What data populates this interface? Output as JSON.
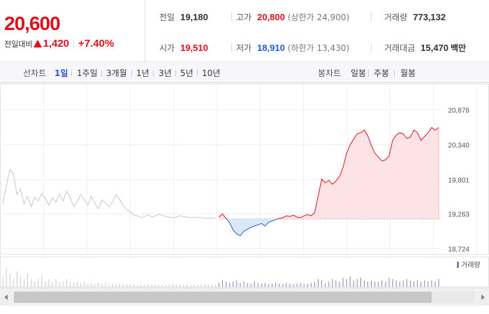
{
  "quote": {
    "price": "20,600",
    "change_label": "전일대비",
    "change_value": "1,420",
    "change_pct": "+7.40%",
    "up_color": "#e0111b",
    "down_color": "#1a5fd6"
  },
  "stats": {
    "prev_close_label": "전일",
    "prev_close": "19,180",
    "high_label": "고가",
    "high": "20,800",
    "upper_limit": "(상한가 24,900)",
    "volume_label": "거래량",
    "volume": "773,132",
    "open_label": "시가",
    "open": "19,510",
    "low_label": "저가",
    "low": "18,910",
    "lower_limit": "(하한가 13,430)",
    "value_label": "거래대금",
    "value": "15,470",
    "value_unit": "백만"
  },
  "tabs": {
    "line_label": "선차트",
    "line_periods": [
      "1일",
      "1주일",
      "3개월",
      "1년",
      "3년",
      "5년",
      "10년"
    ],
    "selected_line_period": "1일",
    "candle_label": "봉차트",
    "candle_periods": [
      "일봉",
      "주봉",
      "월봉"
    ]
  },
  "chart_data": {
    "type": "line",
    "title": "",
    "xlabel": "",
    "ylabel": "",
    "y_ticks": [
      "20,878",
      "20,340",
      "19,801",
      "19,263",
      "18,724"
    ],
    "ylim": [
      18724,
      20878
    ],
    "baseline": 19180,
    "grid": true,
    "series": [
      {
        "role": "previous-days",
        "color": "#c8c8c8",
        "points": [
          [
            0,
            19420
          ],
          [
            1,
            19700
          ],
          [
            2,
            19950
          ],
          [
            3,
            19880
          ],
          [
            4,
            19560
          ],
          [
            5,
            19650
          ],
          [
            6,
            19420
          ],
          [
            7,
            19530
          ],
          [
            8,
            19370
          ],
          [
            9,
            19520
          ],
          [
            10,
            19460
          ],
          [
            11,
            19580
          ],
          [
            12,
            19500
          ],
          [
            13,
            19390
          ],
          [
            14,
            19510
          ],
          [
            15,
            19440
          ],
          [
            16,
            19570
          ],
          [
            17,
            19460
          ],
          [
            18,
            19610
          ],
          [
            19,
            19520
          ],
          [
            20,
            19370
          ],
          [
            21,
            19450
          ],
          [
            22,
            19560
          ],
          [
            23,
            19480
          ],
          [
            24,
            19400
          ],
          [
            25,
            19530
          ],
          [
            26,
            19420
          ],
          [
            27,
            19340
          ],
          [
            28,
            19480
          ],
          [
            29,
            19420
          ],
          [
            30,
            19370
          ],
          [
            31,
            19450
          ],
          [
            32,
            19560
          ],
          [
            33,
            19480
          ],
          [
            34,
            19390
          ],
          [
            35,
            19320
          ],
          [
            36,
            19290
          ],
          [
            37,
            19240
          ],
          [
            38,
            19230
          ],
          [
            39,
            19200
          ],
          [
            40,
            19220
          ],
          [
            41,
            19240
          ],
          [
            42,
            19210
          ],
          [
            43,
            19230
          ],
          [
            44,
            19250
          ],
          [
            45,
            19240
          ],
          [
            46,
            19220
          ],
          [
            47,
            19210
          ],
          [
            48,
            19200
          ],
          [
            49,
            19210
          ],
          [
            50,
            19230
          ],
          [
            51,
            19220
          ],
          [
            52,
            19210
          ],
          [
            53,
            19200
          ],
          [
            54,
            19210
          ],
          [
            55,
            19205
          ],
          [
            56,
            19200
          ],
          [
            57,
            19195
          ],
          [
            58,
            19190
          ],
          [
            59,
            19195
          ],
          [
            60,
            19190
          ]
        ]
      },
      {
        "role": "today",
        "up_color": "#e0111b",
        "down_color": "#1a5fd6",
        "points": [
          [
            61,
            19210
          ],
          [
            62,
            19260
          ],
          [
            63,
            19190
          ],
          [
            64,
            19120
          ],
          [
            65,
            19010
          ],
          [
            66,
            18950
          ],
          [
            67,
            18920
          ],
          [
            68,
            18990
          ],
          [
            69,
            19020
          ],
          [
            70,
            19050
          ],
          [
            71,
            19070
          ],
          [
            72,
            19090
          ],
          [
            73,
            19110
          ],
          [
            74,
            19070
          ],
          [
            75,
            19130
          ],
          [
            76,
            19150
          ],
          [
            77,
            19170
          ],
          [
            78,
            19190
          ],
          [
            79,
            19200
          ],
          [
            80,
            19230
          ],
          [
            81,
            19220
          ],
          [
            82,
            19240
          ],
          [
            83,
            19210
          ],
          [
            84,
            19200
          ],
          [
            85,
            19230
          ],
          [
            86,
            19250
          ],
          [
            87,
            19230
          ],
          [
            88,
            19280
          ],
          [
            89,
            19540
          ],
          [
            90,
            19800
          ],
          [
            91,
            19740
          ],
          [
            92,
            19780
          ],
          [
            93,
            19720
          ],
          [
            94,
            19770
          ],
          [
            95,
            19840
          ],
          [
            96,
            19980
          ],
          [
            97,
            20200
          ],
          [
            98,
            20330
          ],
          [
            99,
            20420
          ],
          [
            100,
            20500
          ],
          [
            101,
            20520
          ],
          [
            102,
            20560
          ],
          [
            103,
            20470
          ],
          [
            104,
            20320
          ],
          [
            105,
            20200
          ],
          [
            106,
            20140
          ],
          [
            107,
            20080
          ],
          [
            108,
            20100
          ],
          [
            109,
            20160
          ],
          [
            110,
            20400
          ],
          [
            111,
            20480
          ],
          [
            112,
            20520
          ],
          [
            113,
            20500
          ],
          [
            114,
            20430
          ],
          [
            115,
            20450
          ],
          [
            116,
            20560
          ],
          [
            117,
            20520
          ],
          [
            118,
            20400
          ],
          [
            119,
            20460
          ],
          [
            120,
            20520
          ],
          [
            121,
            20600
          ],
          [
            122,
            20560
          ],
          [
            123,
            20600
          ]
        ]
      }
    ],
    "volume": {
      "legend": "거래량",
      "color": "#8e7ab9",
      "bars": [
        0.4,
        0.7,
        0.5,
        0.3,
        0.6,
        0.4,
        0.3,
        0.5,
        0.3,
        0.2,
        0.3,
        0.4,
        0.2,
        0.3,
        0.2,
        0.3,
        0.2,
        0.2,
        0.3,
        0.2,
        0.15,
        0.2,
        0.15,
        0.2,
        0.1,
        0.15,
        0.1,
        0.15,
        0.1,
        0.15,
        0.1,
        0.12,
        0.1,
        0.12,
        0.1,
        0.1,
        0.1,
        0.1,
        0.08,
        0.1,
        0.08,
        0.1,
        0.08,
        0.1,
        0.08,
        0.1,
        0.08,
        0.08,
        0.1,
        0.08,
        0.1,
        0.08,
        0.1,
        0.08,
        0.1,
        0.08,
        0.08,
        0.1,
        0.08,
        0.1,
        0.08,
        0.15,
        0.25,
        0.2,
        0.15,
        0.2,
        0.25,
        0.15,
        0.2,
        0.15,
        0.12,
        0.2,
        0.15,
        0.12,
        0.15,
        0.1,
        0.12,
        0.15,
        0.12,
        0.1,
        0.15,
        0.12,
        0.1,
        0.12,
        0.15,
        0.1,
        0.12,
        0.15,
        0.2,
        0.3,
        0.25,
        0.15,
        0.2,
        0.3,
        0.25,
        0.2,
        0.35,
        0.3,
        0.4,
        0.25,
        0.3,
        0.35,
        0.25,
        0.2,
        0.25,
        0.2,
        0.2,
        0.25,
        0.2,
        0.35,
        0.3,
        0.25,
        0.2,
        0.25,
        0.3,
        0.25,
        0.2,
        0.25,
        0.2,
        0.25,
        0.2,
        0.25,
        0.2,
        0.3
      ]
    }
  }
}
